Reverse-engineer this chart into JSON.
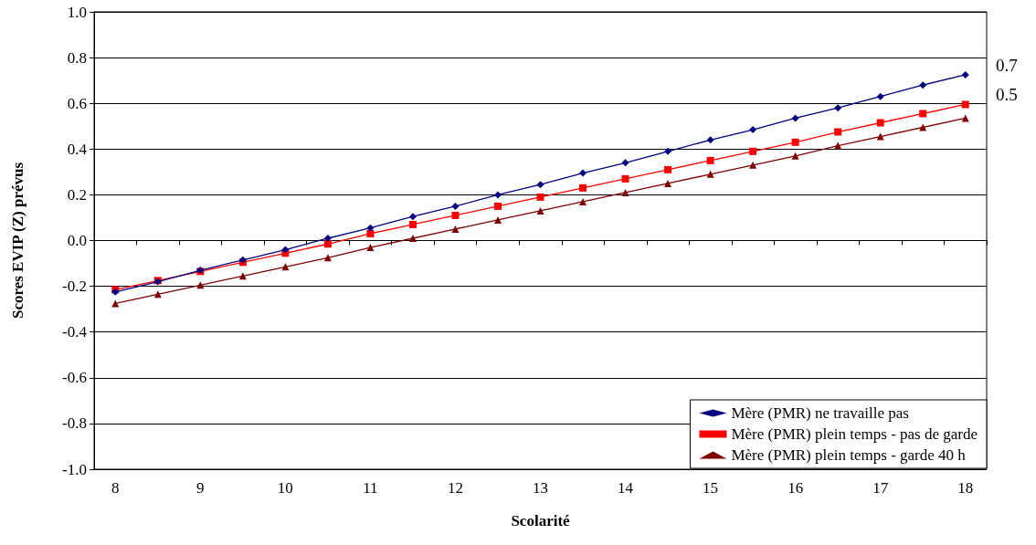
{
  "chart_data": {
    "type": "line",
    "xlabel": "Scolarité",
    "ylabel": "Scores EVIP (Z) prévus",
    "categories": [
      "8",
      null,
      "9",
      null,
      "10",
      null,
      "11",
      null,
      "12",
      null,
      "13",
      null,
      "14",
      null,
      "15",
      null,
      "16",
      null,
      "17",
      null,
      "18"
    ],
    "ylim": [
      -1,
      1
    ],
    "yticks": [
      {
        "value": -1,
        "label": "-1.0"
      },
      {
        "value": -0.8,
        "label": "-0.8"
      },
      {
        "value": -0.6,
        "label": "-0.6"
      },
      {
        "value": -0.4,
        "label": "-0.4"
      },
      {
        "value": -0.2,
        "label": "-0.2"
      },
      {
        "value": 0,
        "label": "0.0"
      },
      {
        "value": 0.2,
        "label": "0.2"
      },
      {
        "value": 0.4,
        "label": "0.4"
      },
      {
        "value": 0.6,
        "label": "0.6"
      },
      {
        "value": 0.8,
        "label": "0.8"
      },
      {
        "value": 1,
        "label": "1.0"
      }
    ],
    "grid": "y",
    "legend": "bottom right",
    "line_style": "solid",
    "series": [
      {
        "name": "Mère (PMR) ne travaille pas",
        "color": "#000080",
        "marker": "diamond",
        "values": [
          -0.225,
          -0.18,
          -0.13,
          -0.085,
          -0.04,
          0.01,
          0.055,
          0.105,
          0.15,
          0.2,
          0.245,
          0.295,
          0.34,
          0.39,
          0.44,
          0.485,
          0.535,
          0.58,
          0.63,
          0.68,
          0.725
        ]
      },
      {
        "name": "Mère (PMR) plein temps - pas de garde",
        "color": "#ff0000",
        "marker": "square",
        "values": [
          -0.215,
          -0.175,
          -0.135,
          -0.095,
          -0.055,
          -0.015,
          0.03,
          0.07,
          0.11,
          0.15,
          0.19,
          0.23,
          0.27,
          0.31,
          0.35,
          0.39,
          0.43,
          0.475,
          0.515,
          0.555,
          0.595
        ]
      },
      {
        "name": "Mère (PMR) plein temps - garde 40 h",
        "color": "#800000",
        "marker": "triangle",
        "values": [
          -0.275,
          -0.235,
          -0.195,
          -0.155,
          -0.115,
          -0.075,
          -0.03,
          0.01,
          0.05,
          0.09,
          0.13,
          0.17,
          0.21,
          0.25,
          0.29,
          0.33,
          0.37,
          0.415,
          0.455,
          0.495,
          0.535
        ]
      }
    ],
    "annotations": [
      {
        "text": "0.7",
        "x": "18",
        "y": 0.725
      },
      {
        "text": "0.5",
        "x": "18",
        "y": 0.595
      }
    ]
  }
}
